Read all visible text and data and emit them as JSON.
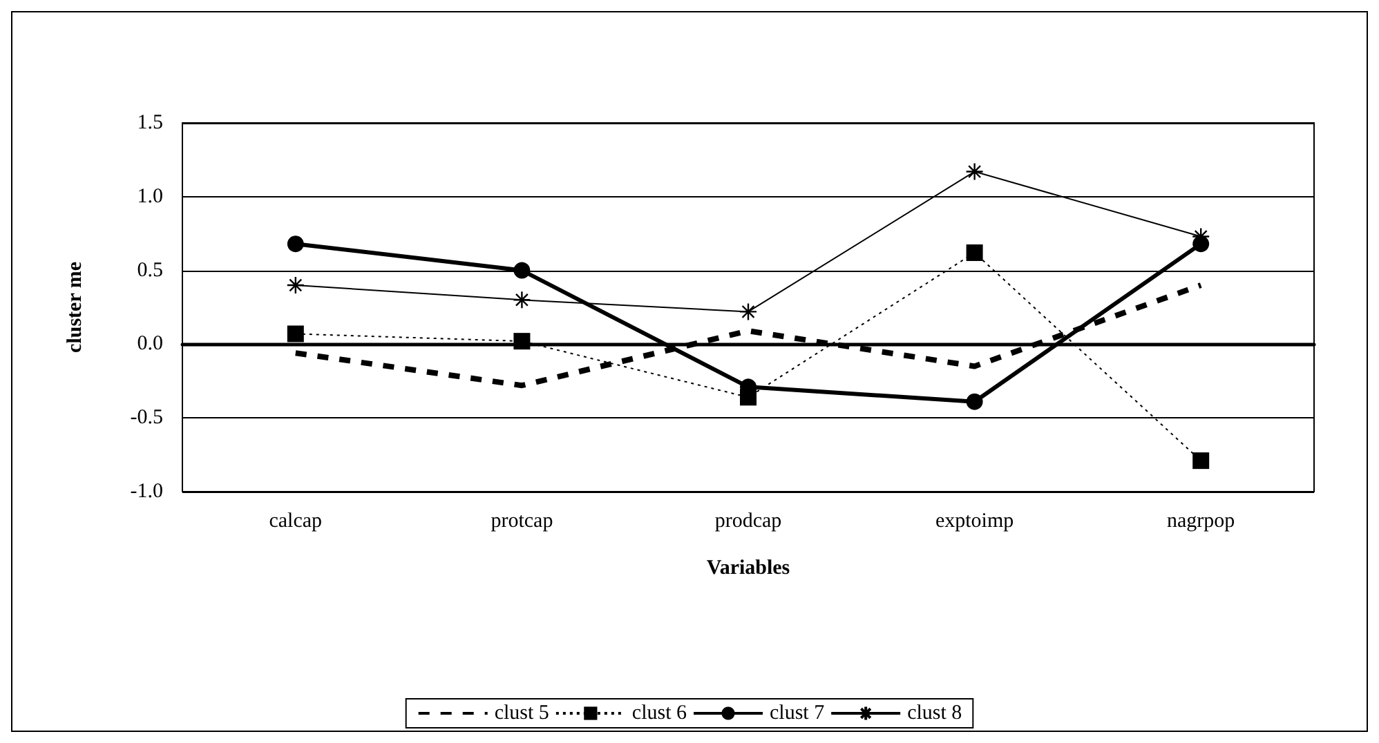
{
  "chart_data": {
    "type": "line",
    "ylabel": "cluster me",
    "xlabel": "Variables",
    "categories": [
      "calcap",
      "protcap",
      "prodcap",
      "exptoimp",
      "nagrpop"
    ],
    "series": [
      {
        "name": "clust 5",
        "color": "#000000",
        "line_style": "dashed",
        "marker": "none",
        "values": [
          -0.06,
          -0.28,
          0.09,
          -0.15,
          0.4
        ]
      },
      {
        "name": "clust 6",
        "color": "#000000",
        "line_style": "dotted",
        "marker": "square",
        "values": [
          0.07,
          0.02,
          -0.36,
          0.62,
          -0.79
        ]
      },
      {
        "name": "clust 7",
        "color": "#000000",
        "line_style": "solid",
        "marker": "circle",
        "values": [
          0.68,
          0.5,
          -0.29,
          -0.39,
          0.68
        ]
      },
      {
        "name": "clust 8",
        "color": "#000000",
        "line_style": "solid",
        "marker": "cross",
        "values": [
          0.4,
          0.3,
          0.22,
          1.17,
          0.73
        ]
      }
    ],
    "ylim": [
      -1,
      1.5
    ],
    "yticks": [
      {
        "value": -1,
        "label": "-1.0"
      },
      {
        "value": -0.5,
        "label": "-0.5"
      },
      {
        "value": 0,
        "label": "0.0"
      },
      {
        "value": 0.5,
        "label": "0.5"
      },
      {
        "value": 1,
        "label": "1.0"
      },
      {
        "value": 1.5,
        "label": "1.5"
      }
    ],
    "grid": "y",
    "legend": "bottom"
  }
}
